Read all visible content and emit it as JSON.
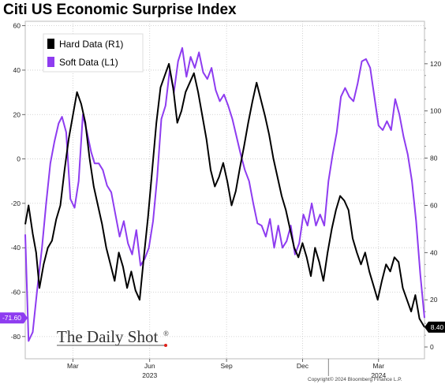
{
  "chart_data": {
    "type": "line",
    "title": "Citi US Economic Surprise Index",
    "x_tick_labels": [
      {
        "label": "Mar",
        "date": "2023-03-01"
      },
      {
        "label": "Jun",
        "date": "2023-06-01"
      },
      {
        "label": "Sep",
        "date": "2023-09-01"
      },
      {
        "label": "Dec",
        "date": "2023-12-01"
      },
      {
        "label": "Mar",
        "date": "2024-03-01"
      }
    ],
    "year_labels": [
      {
        "label": "2023",
        "date": "2023-06-01"
      },
      {
        "label": "2024",
        "date": "2024-03-01"
      }
    ],
    "x_range": [
      "2023-01-03",
      "2024-04-25"
    ],
    "left_axis": {
      "range": [
        -90,
        62
      ],
      "ticks": [
        60,
        40,
        20,
        0,
        -20,
        -40,
        -60,
        -80
      ]
    },
    "right_axis": {
      "range": [
        -5,
        138
      ],
      "ticks": [
        120,
        100,
        80,
        60,
        40,
        20,
        0
      ]
    },
    "series": [
      {
        "name": "Soft Data (L1)",
        "axis": "left",
        "color": "#8e3cf0",
        "last_value_label": "-71.60",
        "points": [
          [
            "2023-01-03",
            -34
          ],
          [
            "2023-01-07",
            -82
          ],
          [
            "2023-01-12",
            -78
          ],
          [
            "2023-01-17",
            -60
          ],
          [
            "2023-01-23",
            -40
          ],
          [
            "2023-01-28",
            -20
          ],
          [
            "2023-02-02",
            -2
          ],
          [
            "2023-02-07",
            8
          ],
          [
            "2023-02-12",
            16
          ],
          [
            "2023-02-16",
            19
          ],
          [
            "2023-02-21",
            12
          ],
          [
            "2023-02-26",
            -18
          ],
          [
            "2023-03-03",
            -22
          ],
          [
            "2023-03-08",
            -10
          ],
          [
            "2023-03-13",
            20
          ],
          [
            "2023-03-18",
            12
          ],
          [
            "2023-03-23",
            3
          ],
          [
            "2023-03-27",
            -2
          ],
          [
            "2023-04-01",
            -2
          ],
          [
            "2023-04-06",
            -5
          ],
          [
            "2023-04-11",
            -12
          ],
          [
            "2023-04-16",
            -15
          ],
          [
            "2023-04-21",
            -25
          ],
          [
            "2023-04-26",
            -35
          ],
          [
            "2023-05-01",
            -28
          ],
          [
            "2023-05-06",
            -38
          ],
          [
            "2023-05-11",
            -43
          ],
          [
            "2023-05-16",
            -32
          ],
          [
            "2023-05-21",
            -48
          ],
          [
            "2023-05-26",
            -45
          ],
          [
            "2023-05-31",
            -40
          ],
          [
            "2023-06-05",
            -28
          ],
          [
            "2023-06-10",
            -8
          ],
          [
            "2023-06-15",
            18
          ],
          [
            "2023-06-20",
            24
          ],
          [
            "2023-06-25",
            40
          ],
          [
            "2023-06-30",
            30
          ],
          [
            "2023-07-05",
            44
          ],
          [
            "2023-07-10",
            50
          ],
          [
            "2023-07-15",
            37
          ],
          [
            "2023-07-20",
            46
          ],
          [
            "2023-07-25",
            41
          ],
          [
            "2023-07-30",
            48
          ],
          [
            "2023-08-04",
            39
          ],
          [
            "2023-08-09",
            36
          ],
          [
            "2023-08-14",
            41
          ],
          [
            "2023-08-19",
            31
          ],
          [
            "2023-08-24",
            26
          ],
          [
            "2023-08-29",
            29
          ],
          [
            "2023-09-03",
            24
          ],
          [
            "2023-09-08",
            18
          ],
          [
            "2023-09-13",
            10
          ],
          [
            "2023-09-18",
            2
          ],
          [
            "2023-09-23",
            -5
          ],
          [
            "2023-09-28",
            -10
          ],
          [
            "2023-10-03",
            -20
          ],
          [
            "2023-10-08",
            -29
          ],
          [
            "2023-10-13",
            -30
          ],
          [
            "2023-10-18",
            -35
          ],
          [
            "2023-10-23",
            -27
          ],
          [
            "2023-10-28",
            -40
          ],
          [
            "2023-11-02",
            -30
          ],
          [
            "2023-11-07",
            -40
          ],
          [
            "2023-11-12",
            -37
          ],
          [
            "2023-11-17",
            -30
          ],
          [
            "2023-11-22",
            -43
          ],
          [
            "2023-11-27",
            -38
          ],
          [
            "2023-12-02",
            -25
          ],
          [
            "2023-12-07",
            -30
          ],
          [
            "2023-12-12",
            -20
          ],
          [
            "2023-12-17",
            -30
          ],
          [
            "2023-12-22",
            -25
          ],
          [
            "2023-12-27",
            -30
          ],
          [
            "2024-01-01",
            -10
          ],
          [
            "2024-01-06",
            2
          ],
          [
            "2024-01-11",
            12
          ],
          [
            "2024-01-16",
            28
          ],
          [
            "2024-01-21",
            32
          ],
          [
            "2024-01-26",
            28
          ],
          [
            "2024-01-31",
            26
          ],
          [
            "2024-02-05",
            34
          ],
          [
            "2024-02-10",
            44
          ],
          [
            "2024-02-15",
            45
          ],
          [
            "2024-02-20",
            41
          ],
          [
            "2024-02-25",
            28
          ],
          [
            "2024-03-01",
            15
          ],
          [
            "2024-03-06",
            13
          ],
          [
            "2024-03-11",
            17
          ],
          [
            "2024-03-16",
            13
          ],
          [
            "2024-03-21",
            27
          ],
          [
            "2024-03-26",
            20
          ],
          [
            "2024-03-31",
            10
          ],
          [
            "2024-04-05",
            2
          ],
          [
            "2024-04-10",
            -10
          ],
          [
            "2024-04-15",
            -28
          ],
          [
            "2024-04-20",
            -52
          ],
          [
            "2024-04-25",
            -71.6
          ]
        ]
      },
      {
        "name": "Hard Data (R1)",
        "axis": "right",
        "color": "#000000",
        "last_value_label": "8.40",
        "points": [
          [
            "2023-01-03",
            52
          ],
          [
            "2023-01-07",
            60
          ],
          [
            "2023-01-12",
            48
          ],
          [
            "2023-01-16",
            40
          ],
          [
            "2023-01-20",
            25
          ],
          [
            "2023-01-25",
            35
          ],
          [
            "2023-01-30",
            42
          ],
          [
            "2023-02-04",
            45
          ],
          [
            "2023-02-09",
            54
          ],
          [
            "2023-02-14",
            60
          ],
          [
            "2023-02-19",
            75
          ],
          [
            "2023-02-24",
            88
          ],
          [
            "2023-03-01",
            98
          ],
          [
            "2023-03-06",
            108
          ],
          [
            "2023-03-11",
            103
          ],
          [
            "2023-03-16",
            95
          ],
          [
            "2023-03-21",
            80
          ],
          [
            "2023-03-26",
            68
          ],
          [
            "2023-03-31",
            60
          ],
          [
            "2023-04-05",
            52
          ],
          [
            "2023-04-10",
            42
          ],
          [
            "2023-04-15",
            35
          ],
          [
            "2023-04-20",
            28
          ],
          [
            "2023-04-25",
            40
          ],
          [
            "2023-04-30",
            34
          ],
          [
            "2023-05-05",
            25
          ],
          [
            "2023-05-10",
            32
          ],
          [
            "2023-05-15",
            24
          ],
          [
            "2023-05-20",
            20
          ],
          [
            "2023-05-25",
            38
          ],
          [
            "2023-05-30",
            55
          ],
          [
            "2023-06-04",
            75
          ],
          [
            "2023-06-09",
            95
          ],
          [
            "2023-06-14",
            110
          ],
          [
            "2023-06-19",
            115
          ],
          [
            "2023-06-24",
            120
          ],
          [
            "2023-06-29",
            110
          ],
          [
            "2023-07-04",
            95
          ],
          [
            "2023-07-09",
            100
          ],
          [
            "2023-07-14",
            108
          ],
          [
            "2023-07-19",
            112
          ],
          [
            "2023-07-24",
            116
          ],
          [
            "2023-07-29",
            108
          ],
          [
            "2023-08-03",
            98
          ],
          [
            "2023-08-08",
            88
          ],
          [
            "2023-08-13",
            75
          ],
          [
            "2023-08-18",
            68
          ],
          [
            "2023-08-23",
            72
          ],
          [
            "2023-08-28",
            78
          ],
          [
            "2023-09-02",
            70
          ],
          [
            "2023-09-07",
            60
          ],
          [
            "2023-09-12",
            66
          ],
          [
            "2023-09-17",
            76
          ],
          [
            "2023-09-22",
            85
          ],
          [
            "2023-09-27",
            95
          ],
          [
            "2023-10-02",
            104
          ],
          [
            "2023-10-07",
            112
          ],
          [
            "2023-10-12",
            105
          ],
          [
            "2023-10-17",
            98
          ],
          [
            "2023-10-22",
            90
          ],
          [
            "2023-10-27",
            80
          ],
          [
            "2023-11-01",
            72
          ],
          [
            "2023-11-06",
            64
          ],
          [
            "2023-11-11",
            58
          ],
          [
            "2023-11-16",
            50
          ],
          [
            "2023-11-21",
            42
          ],
          [
            "2023-11-26",
            38
          ],
          [
            "2023-12-01",
            44
          ],
          [
            "2023-12-06",
            38
          ],
          [
            "2023-12-11",
            30
          ],
          [
            "2023-12-16",
            42
          ],
          [
            "2023-12-21",
            36
          ],
          [
            "2023-12-26",
            28
          ],
          [
            "2023-12-31",
            40
          ],
          [
            "2024-01-05",
            50
          ],
          [
            "2024-01-10",
            58
          ],
          [
            "2024-01-15",
            64
          ],
          [
            "2024-01-20",
            62
          ],
          [
            "2024-01-25",
            58
          ],
          [
            "2024-01-30",
            46
          ],
          [
            "2024-02-04",
            40
          ],
          [
            "2024-02-09",
            35
          ],
          [
            "2024-02-14",
            40
          ],
          [
            "2024-02-19",
            32
          ],
          [
            "2024-02-24",
            26
          ],
          [
            "2024-02-29",
            20
          ],
          [
            "2024-03-05",
            28
          ],
          [
            "2024-03-10",
            35
          ],
          [
            "2024-03-15",
            32
          ],
          [
            "2024-03-20",
            38
          ],
          [
            "2024-03-25",
            36
          ],
          [
            "2024-03-30",
            25
          ],
          [
            "2024-04-04",
            20
          ],
          [
            "2024-04-09",
            15
          ],
          [
            "2024-04-14",
            22
          ],
          [
            "2024-04-19",
            12
          ],
          [
            "2024-04-25",
            8.4
          ]
        ]
      }
    ],
    "legend": {
      "placement": "top-left",
      "entries": [
        "Hard Data (R1)",
        "Soft Data (L1)"
      ]
    },
    "grid": true
  },
  "watermark": "The Daily Shot",
  "watermark_mark": "®",
  "copyright": "Copyright© 2024 Bloomberg Finance L.P."
}
